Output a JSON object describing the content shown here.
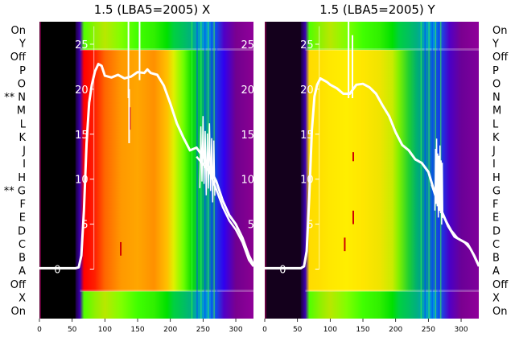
{
  "chart_data": [
    {
      "type": "heatmap",
      "title": "1.5 (LBA5=2005) X",
      "xlabel": "",
      "ylabel": "",
      "x_ticks": [
        0,
        50,
        100,
        150,
        200,
        250,
        300
      ],
      "xlim": [
        0,
        327
      ],
      "row_labels_top_to_bottom": [
        "On",
        "Y",
        "Off",
        "P",
        "O",
        "** N",
        "M",
        "L",
        "K",
        "J",
        "I",
        "H",
        "** G",
        "F",
        "E",
        "D",
        "C",
        "B",
        "A",
        "Off",
        "X",
        "On"
      ],
      "overlay_ticks": [
        0,
        5,
        10,
        15,
        20,
        25
      ],
      "overlay_ylim": [
        -5.5,
        27.5
      ],
      "overlay_series": {
        "name": "",
        "x": [
          0,
          55,
          60,
          64,
          68,
          72,
          76,
          80,
          85,
          90,
          95,
          100,
          110,
          120,
          130,
          140,
          150,
          160,
          165,
          170,
          180,
          190,
          200,
          210,
          220,
          230,
          240,
          250,
          260,
          270,
          280,
          290,
          300,
          310,
          320,
          327
        ],
        "y": [
          0.1,
          0.1,
          0.2,
          1.5,
          6.5,
          14,
          18.5,
          20.5,
          22,
          22.8,
          22.6,
          21.5,
          21.3,
          21.6,
          21.2,
          21.4,
          21.9,
          21.8,
          22.2,
          21.8,
          21.6,
          20.4,
          18.4,
          16.2,
          14.6,
          13.2,
          13.5,
          12.5,
          11.2,
          9.8,
          7.6,
          6.0,
          5.0,
          3.5,
          1.5,
          0.5
        ]
      },
      "overlay_series_lower": {
        "x": [
          240,
          260,
          270,
          280,
          290,
          300,
          310,
          320,
          327
        ],
        "y": [
          12.5,
          10.8,
          8.9,
          6.9,
          5.4,
          4.4,
          3.0,
          1.0,
          0.3
        ]
      },
      "gap_rows": [
        "Off",
        "X",
        "On",
        "Y"
      ],
      "band_breakpoints_x": [
        0,
        55,
        62,
        68,
        85,
        100,
        125,
        150,
        175,
        195,
        205,
        220,
        232,
        245,
        258,
        272,
        282,
        300,
        327
      ],
      "band_colors": [
        "#000000",
        "#1a003a",
        "#3c00b0",
        "#ff0000",
        "#ff2000",
        "#ff6600",
        "#ff9900",
        "#ffa600",
        "#ff9000",
        "#ffc000",
        "#e0f000",
        "#70ff00",
        "#10e000",
        "#00c050",
        "#0090a0",
        "#2030e0",
        "#3000f0",
        "#700090",
        "#8a0090"
      ]
    },
    {
      "type": "heatmap",
      "title": "1.5 (LBA5=2005) Y",
      "xlabel": "",
      "ylabel": "",
      "x_ticks": [
        0,
        50,
        100,
        150,
        200,
        250,
        300
      ],
      "xlim": [
        0,
        327
      ],
      "row_labels_top_to_bottom": [
        "On",
        "Y",
        "Off",
        "P",
        "O",
        "N",
        "M",
        "L",
        "K",
        "J",
        "I",
        "H",
        "G",
        "F",
        "E",
        "D",
        "C",
        "B",
        "A",
        "Off",
        "X",
        "On"
      ],
      "overlay_ticks": [
        0,
        5,
        10,
        15,
        20,
        25
      ],
      "overlay_ylim": [
        -5.5,
        27.5
      ],
      "overlay_series": {
        "name": "",
        "x": [
          0,
          55,
          60,
          64,
          68,
          72,
          76,
          80,
          85,
          90,
          95,
          100,
          110,
          120,
          130,
          140,
          150,
          160,
          170,
          180,
          190,
          200,
          210,
          220,
          230,
          240,
          250,
          260,
          270,
          280,
          290,
          300,
          310,
          320,
          327
        ],
        "y": [
          0.1,
          0.1,
          0.3,
          2.0,
          8.0,
          15.5,
          19.2,
          20.5,
          21.2,
          21.0,
          20.8,
          20.5,
          20.1,
          19.5,
          19.5,
          20.5,
          20.6,
          20.2,
          19.5,
          18.2,
          17.0,
          15.2,
          13.8,
          13.2,
          12.2,
          11.8,
          10.8,
          8.4,
          6.5,
          4.8,
          3.6,
          3.2,
          2.8,
          1.5,
          0.4
        ]
      },
      "overlay_series_lower": {
        "x": [
          255,
          265,
          275,
          285,
          295,
          305,
          315,
          327
        ],
        "y": [
          9.4,
          7.2,
          5.6,
          4.3,
          3.4,
          3.0,
          2.2,
          0.3
        ]
      },
      "gap_rows": [
        "Off",
        "X",
        "On",
        "Y"
      ],
      "band_breakpoints_x": [
        0,
        55,
        62,
        68,
        85,
        100,
        125,
        150,
        175,
        195,
        205,
        220,
        232,
        245,
        258,
        272,
        282,
        300,
        327
      ],
      "band_colors": [
        "#12001e",
        "#1a003a",
        "#3c00b0",
        "#ffdc00",
        "#ffe000",
        "#ffe800",
        "#ffee00",
        "#ffe600",
        "#f0e400",
        "#c8ec00",
        "#80f000",
        "#20d030",
        "#00b070",
        "#0090a0",
        "#1060d0",
        "#2030e0",
        "#4800c8",
        "#6a0098",
        "#80009a"
      ]
    }
  ]
}
